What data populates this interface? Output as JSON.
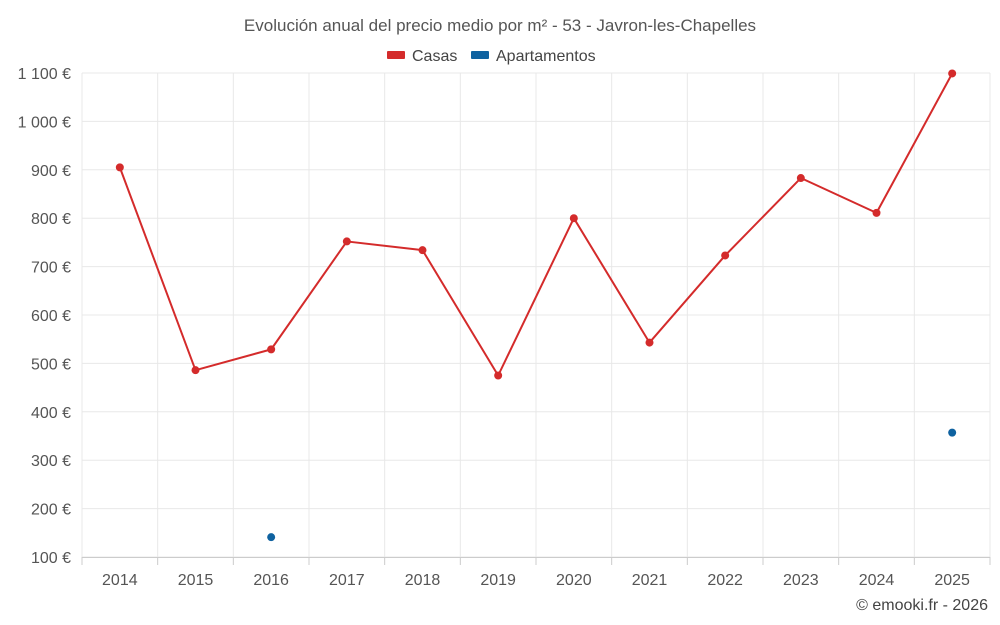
{
  "chart_data": {
    "type": "line",
    "title": "Evolución anual del precio medio por m² - 53 - Javron-les-Chapelles",
    "categories": [
      "2014",
      "2015",
      "2016",
      "2017",
      "2018",
      "2019",
      "2020",
      "2021",
      "2022",
      "2023",
      "2024",
      "2025"
    ],
    "y_ticks": [
      "100 €",
      "200 €",
      "300 €",
      "400 €",
      "500 €",
      "600 €",
      "700 €",
      "800 €",
      "900 €",
      "1 000 €",
      "1 100 €"
    ],
    "ylim": [
      100,
      1100
    ],
    "grid": true,
    "legend_position": "top-center",
    "series": [
      {
        "name": "Casas",
        "color": "#d42b2b",
        "values": [
          905,
          486,
          529,
          752,
          734,
          475,
          800,
          543,
          723,
          883,
          811,
          1099
        ]
      },
      {
        "name": "Apartamentos",
        "color": "#0f62a0",
        "values": [
          null,
          null,
          141,
          null,
          null,
          null,
          null,
          null,
          null,
          null,
          null,
          357
        ]
      }
    ],
    "credit": "© emooki.fr - 2026"
  }
}
